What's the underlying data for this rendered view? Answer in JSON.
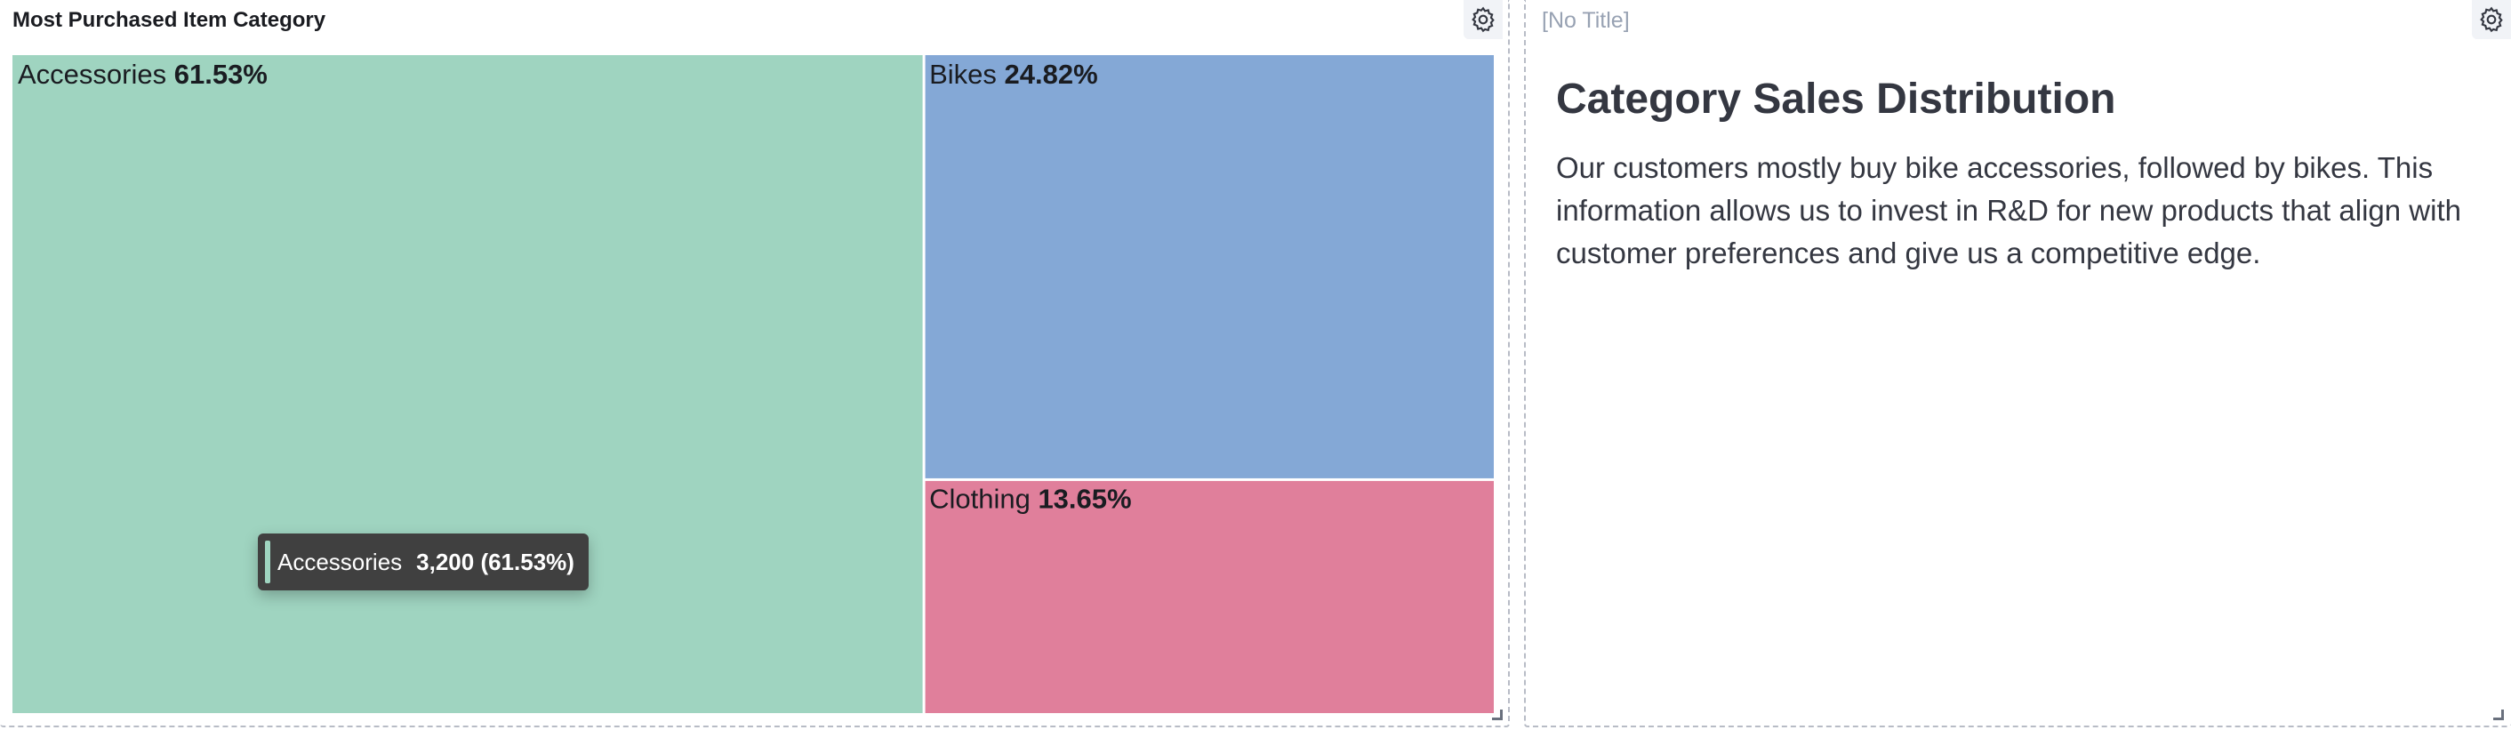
{
  "left_panel": {
    "title": "Most Purchased Item Category",
    "gear_icon": "gear-icon",
    "resize_icon": "resize-handle-icon"
  },
  "right_panel": {
    "title": "[No Title]",
    "heading": "Category Sales Distribution",
    "paragraph": "Our customers mostly buy bike accessories, followed by bikes. This information allows us to invest in R&D for new products that align with customer preferences and give us a competitive edge.",
    "gear_icon": "gear-icon",
    "resize_icon": "resize-handle-icon"
  },
  "chart_data": {
    "type": "treemap",
    "title": "Most Purchased Item Category",
    "items": [
      {
        "name": "Accessories",
        "percent_label": "61.53%",
        "value": 61.53,
        "color": "#9fd4c0"
      },
      {
        "name": "Bikes",
        "percent_label": "24.82%",
        "value": 24.82,
        "color": "#84a8d6"
      },
      {
        "name": "Clothing",
        "percent_label": "13.65%",
        "value": 13.65,
        "color": "#e07f9b"
      }
    ]
  },
  "tooltip": {
    "label": "Accessories",
    "value": "3,200 (61.53%)",
    "color": "#9fd4c0"
  }
}
